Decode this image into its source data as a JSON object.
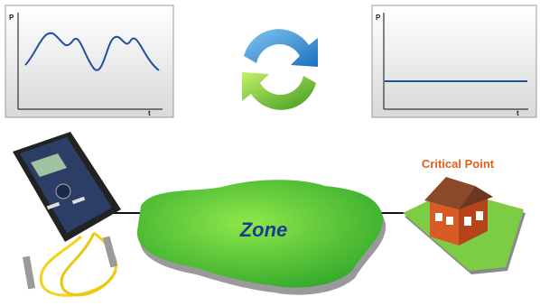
{
  "panels": [
    {
      "y_label": "P",
      "x_label": "t"
    },
    {
      "y_label": "P",
      "x_label": "t"
    }
  ],
  "zone": {
    "label": "Zone"
  },
  "critical_point": {
    "label": "Critical Point"
  }
}
